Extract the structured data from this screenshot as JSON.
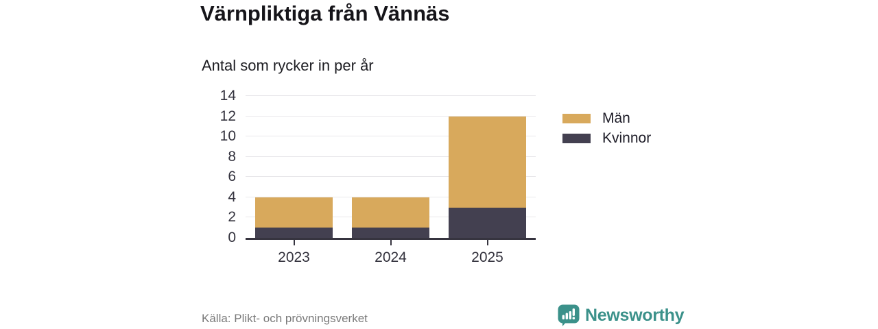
{
  "chart_data": {
    "type": "bar",
    "stacked": true,
    "title": "Värnpliktiga från Vännäs",
    "subtitle": "Antal som rycker in per år",
    "categories": [
      "2023",
      "2024",
      "2025"
    ],
    "series": [
      {
        "name": "Män",
        "color": "#D8A95C",
        "values": [
          3,
          3,
          9
        ]
      },
      {
        "name": "Kvinnor",
        "color": "#434050",
        "values": [
          1,
          1,
          3
        ]
      }
    ],
    "totals": [
      4,
      4,
      12
    ],
    "ylim": [
      0,
      14
    ],
    "yticks": [
      0,
      2,
      4,
      6,
      8,
      10,
      12,
      14
    ],
    "grid": true,
    "legend_position": "right",
    "source": "Källa: Plikt- och prövningsverket"
  },
  "footer": {
    "brand": "Newsworthy",
    "brand_color": "#3B918A"
  },
  "colors": {
    "axis": "#36343F",
    "gridline": "#E8E7EA",
    "tick_label": "#33323D",
    "source_text": "#7A7A7A"
  }
}
